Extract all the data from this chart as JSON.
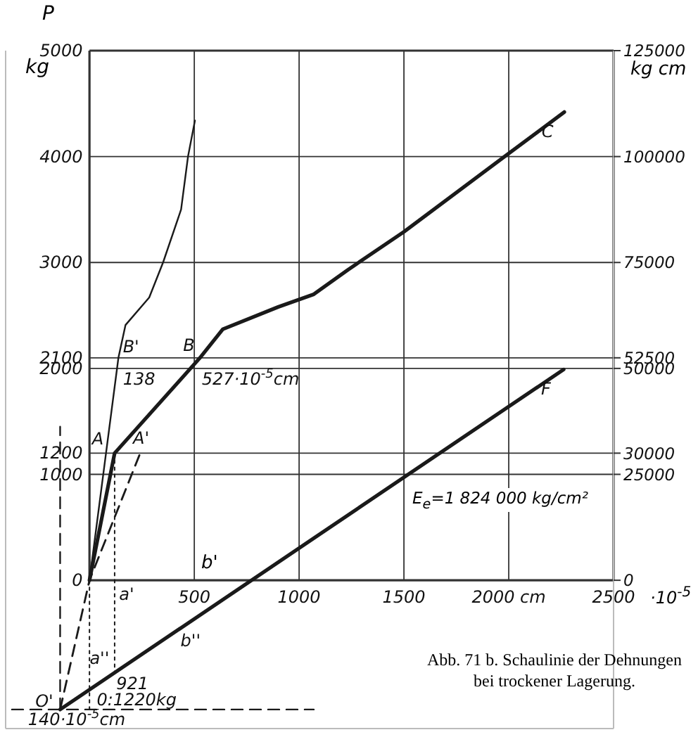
{
  "chart_data": {
    "type": "line",
    "ylabel": "P",
    "y2label": "kg cm",
    "xlim": [
      -400,
      2500
    ],
    "ylim": [
      -1400,
      5000
    ],
    "y2lim": [
      -35000,
      125000
    ],
    "xticks": [
      {
        "value": 0,
        "label": null
      },
      500,
      1000,
      1500,
      {
        "value": 2000,
        "label": "2000 cm"
      },
      2500
    ],
    "xlabel": "·10$^{-5}$",
    "yticks": [
      0,
      1000,
      1200,
      2000,
      2100,
      3000,
      4000,
      5000
    ],
    "y2ticks": [
      0,
      25000,
      30000,
      50000,
      52500,
      75000,
      100000,
      125000
    ],
    "grid": true,
    "marker": "none",
    "series": [
      {
        "x": [
          0,
          120,
          527,
          636,
          900,
          1070,
          1232,
          1500,
          1980,
          2265
        ],
        "values": [
          0,
          1200,
          2100,
          2370,
          2580,
          2700,
          2930,
          3290,
          4000,
          4420
        ],
        "color": "#1a1a1a",
        "line_style": "solid"
      },
      {
        "x": [
          0,
          138,
          172,
          285,
          351,
          437,
          470,
          503
        ],
        "values": [
          0,
          2100,
          2410,
          2670,
          3000,
          3500,
          4000,
          4340
        ],
        "color": "#1a1a1a",
        "line_style": "solid"
      },
      {
        "x": [
          -140,
          0,
          238
        ],
        "values": [
          -1220,
          0,
          1180
        ],
        "color": "#1a1a1a",
        "line_style": "dashed"
      },
      {
        "x": [
          -140,
          2262
        ],
        "values": [
          -1220,
          1990
        ],
        "color": "#1a1a1a",
        "line_style": "solid"
      },
      {
        "x": [
          -370,
          1070
        ],
        "values": [
          -1220,
          -1220
        ],
        "color": "#1a1a1a",
        "line_style": "dashed"
      },
      {
        "x": [
          -140,
          -140
        ],
        "values": [
          -1220,
          1450
        ],
        "color": "#1a1a1a",
        "line_style": "dashed"
      },
      {
        "x": [
          120,
          120
        ],
        "values": [
          1200,
          -870
        ],
        "color": "#1a1a1a",
        "line_style": "dotted"
      },
      {
        "x": [
          0,
          0
        ],
        "values": [
          0,
          -1220
        ],
        "color": "#1a1a1a",
        "line_style": "dotted"
      }
    ],
    "annotations": [
      {
        "text": "A",
        "x": 120,
        "y": 1200
      },
      {
        "text": "A'",
        "x": 238,
        "y": 1180
      },
      {
        "text": "B'",
        "x": 138,
        "y": 2100
      },
      {
        "text": "138",
        "x": 138,
        "y": 2100
      },
      {
        "text": "B",
        "x": 527,
        "y": 2100
      },
      {
        "text": "527·10$^{-5}$cm",
        "x": 527,
        "y": 2100
      },
      {
        "text": "C",
        "x": 2265,
        "y": 4420
      },
      {
        "text": "F",
        "x": 2262,
        "y": 1990
      },
      {
        "text": "a'",
        "x": 120,
        "y": 0
      },
      {
        "text": "b''",
        "x": 527,
        "y": -330
      },
      {
        "text": "a''",
        "x": 120,
        "y": -870
      },
      {
        "text": "921",
        "x": 120,
        "y": -870
      },
      {
        "text": "O'",
        "x": -140,
        "y": -1220
      },
      {
        "text": "0:1220kg",
        "x": 0,
        "y": -1220
      },
      {
        "text": "140·10$^{-5}$cm",
        "x": -140,
        "y": -1220
      },
      "kg",
      "b'",
      "E$_{e}$=1 824 000 kg/cm²",
      "Abb. 71 b. Schaulinie der Dehnungen bei trockener Lagerung."
    ]
  }
}
